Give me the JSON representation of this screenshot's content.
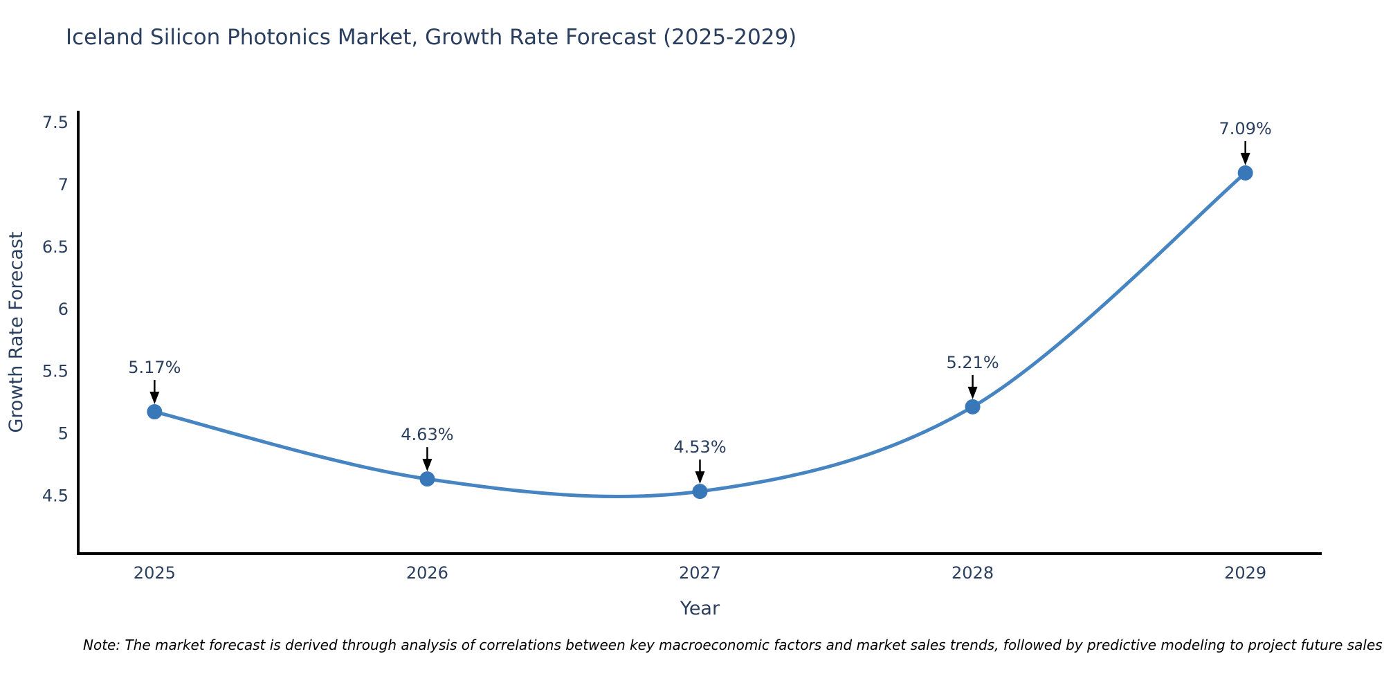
{
  "title": "Iceland Silicon Photonics Market, Growth Rate Forecast (2025-2029)",
  "note": "Note: The market forecast is derived through analysis of correlations between key macroeconomic factors and market sales trends, followed by predictive modeling to project future sales",
  "chart_data": {
    "type": "line",
    "title": "Iceland Silicon Photonics Market, Growth Rate Forecast (2025-2029)",
    "xlabel": "Year",
    "ylabel": "Growth Rate Forecast",
    "x": [
      2025,
      2026,
      2027,
      2028,
      2029
    ],
    "values": [
      5.17,
      4.63,
      4.53,
      5.21,
      7.09
    ],
    "point_labels": [
      "5.17%",
      "4.63%",
      "4.53%",
      "5.21%",
      "7.09%"
    ],
    "x_tick_labels": [
      "2025",
      "2026",
      "2027",
      "2028",
      "2029"
    ],
    "y_ticks": [
      4.5,
      5,
      5.5,
      6,
      6.5,
      7,
      7.5
    ],
    "y_tick_labels": [
      "4.5",
      "5",
      "5.5",
      "6",
      "6.5",
      "7",
      "7.5"
    ],
    "xlim": [
      2024.72,
      2029.28
    ],
    "ylim": [
      4.03,
      7.59
    ],
    "line_shape": "spline",
    "grid": false,
    "legend": false,
    "annotation_arrows": true,
    "colors": {
      "line": "#4685c1",
      "marker": "#3878b8",
      "axis_line": "#000000",
      "text": "#2a3f5f",
      "annotation_text": "#2a3f5f",
      "arrow": "#000000",
      "note_text": "#000000",
      "background": "#ffffff"
    }
  }
}
